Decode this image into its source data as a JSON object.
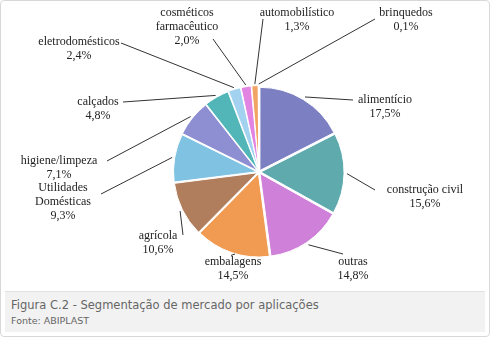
{
  "chart_data": {
    "type": "pie",
    "title": "Figura C.2 - Segmentação de mercado por aplicações",
    "source": "Fonte: ABIPLAST",
    "categories": [
      "alimentício",
      "construção civil",
      "outras",
      "embalagens",
      "agrícola",
      "Utilidades\nDomésticas",
      "higiene/limpeza",
      "calçados",
      "eletrodomésticos",
      "cosméticos\nfarmacêutico",
      "automobilístico",
      "brinquedos"
    ],
    "values": [
      17.5,
      15.6,
      14.8,
      14.5,
      10.6,
      9.3,
      7.1,
      4.8,
      2.4,
      2.0,
      1.3,
      0.1
    ],
    "value_labels": [
      "17,5%",
      "15,6%",
      "14,8%",
      "14,5%",
      "10,6%",
      "9,3%",
      "7,1%",
      "4,8%",
      "2,4%",
      "2,0%",
      "1,3%",
      "0,1%"
    ],
    "colors": [
      "#7c7fc2",
      "#5eaaad",
      "#cf80d8",
      "#f09a52",
      "#b07e5c",
      "#80c2e2",
      "#8e8ed2",
      "#52b6b8",
      "#a2d2f0",
      "#e284e2",
      "#f2a464",
      "#b08060"
    ],
    "data_labels": true
  }
}
